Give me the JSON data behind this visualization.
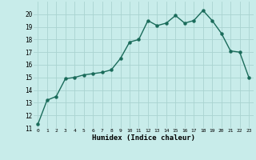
{
  "x": [
    0,
    1,
    2,
    3,
    4,
    5,
    6,
    7,
    8,
    9,
    10,
    11,
    12,
    13,
    14,
    15,
    16,
    17,
    18,
    19,
    20,
    21,
    22,
    23
  ],
  "y": [
    11.3,
    13.2,
    13.5,
    14.9,
    15.0,
    15.2,
    15.3,
    15.4,
    15.6,
    16.5,
    17.8,
    18.0,
    19.5,
    19.1,
    19.3,
    19.9,
    19.3,
    19.5,
    20.3,
    19.5,
    18.5,
    17.1,
    17.0,
    15.0
  ],
  "xlabel": "Humidex (Indice chaleur)",
  "line_color": "#1a6b5a",
  "bg_color": "#c8ecea",
  "grid_color": "#aad4d0",
  "ylim": [
    11,
    21
  ],
  "xlim": [
    -0.5,
    23.5
  ],
  "yticks": [
    11,
    12,
    13,
    14,
    15,
    16,
    17,
    18,
    19,
    20
  ],
  "xticks": [
    0,
    1,
    2,
    3,
    4,
    5,
    6,
    7,
    8,
    9,
    10,
    11,
    12,
    13,
    14,
    15,
    16,
    17,
    18,
    19,
    20,
    21,
    22,
    23
  ]
}
